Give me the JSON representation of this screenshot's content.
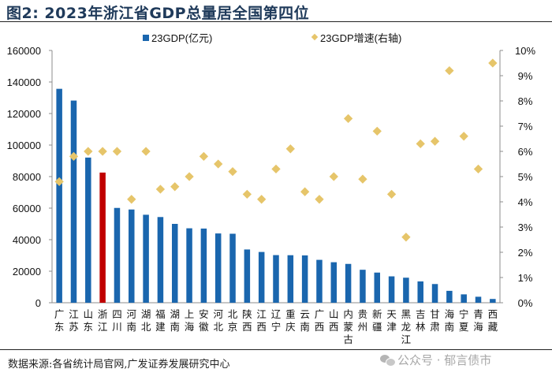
{
  "header": {
    "title": "图2:  2023年浙江省GDP总量居全国第四位"
  },
  "footer": {
    "source": "数据来源:各省统计局官网,广发证券发展研究中心",
    "watermark": "公众号 · 郁言债市",
    "watermark_icon": "wechat-icon"
  },
  "colors": {
    "bar": "#1a66ae",
    "highlight_bar": "#c00000",
    "marker": "#e6c56a",
    "axis": "#8c8c8c"
  },
  "chart_data": {
    "type": "bar",
    "title": "2023年浙江省GDP总量居全国第四位",
    "xlabel": "",
    "ylabel": "",
    "y2label": "",
    "categories": [
      "广东",
      "江苏",
      "山东",
      "浙江",
      "四川",
      "河南",
      "湖北",
      "福建",
      "湖南",
      "上海",
      "安徽",
      "河北",
      "北京",
      "陕西",
      "江西",
      "辽宁",
      "重庆",
      "云南",
      "广西",
      "山西",
      "内蒙古",
      "贵州",
      "新疆",
      "天津",
      "黑龙江",
      "吉林",
      "甘肃",
      "海南",
      "宁夏",
      "青海",
      "西藏"
    ],
    "highlight_category": "浙江",
    "series": [
      {
        "name": "23GDP(亿元)",
        "type": "bar",
        "axis": "left",
        "values": [
          135673,
          128222,
          92069,
          82553,
          60133,
          59132,
          55804,
          54355,
          50013,
          47219,
          47051,
          43944,
          43761,
          33786,
          32200,
          30209,
          30146,
          30021,
          27202,
          25698,
          24627,
          20913,
          19126,
          16737,
          15884,
          13531,
          11864,
          7551,
          5315,
          3800,
          2393
        ]
      },
      {
        "name": "23GDP增速(右轴)",
        "type": "scatter",
        "axis": "right",
        "marker": "diamond",
        "values": [
          4.8,
          5.8,
          6.0,
          6.0,
          6.0,
          4.1,
          6.0,
          4.5,
          4.6,
          5.0,
          5.8,
          5.5,
          5.2,
          4.3,
          4.1,
          5.3,
          6.1,
          4.4,
          4.1,
          5.0,
          7.3,
          4.9,
          6.8,
          4.3,
          2.6,
          6.3,
          6.4,
          9.2,
          6.6,
          5.3,
          9.5
        ]
      }
    ],
    "ylim": [
      0,
      160000
    ],
    "yticks": [
      "0",
      "20000",
      "40000",
      "60000",
      "80000",
      "100000",
      "120000",
      "140000",
      "160000"
    ],
    "y2lim": [
      0,
      10
    ],
    "y2ticks": [
      "0%",
      "1%",
      "2%",
      "3%",
      "4%",
      "5%",
      "6%",
      "7%",
      "8%",
      "9%",
      "10%"
    ],
    "legend": [
      "23GDP(亿元)",
      "23GDP增速(右轴)"
    ],
    "legend_position": "top",
    "grid": false
  }
}
